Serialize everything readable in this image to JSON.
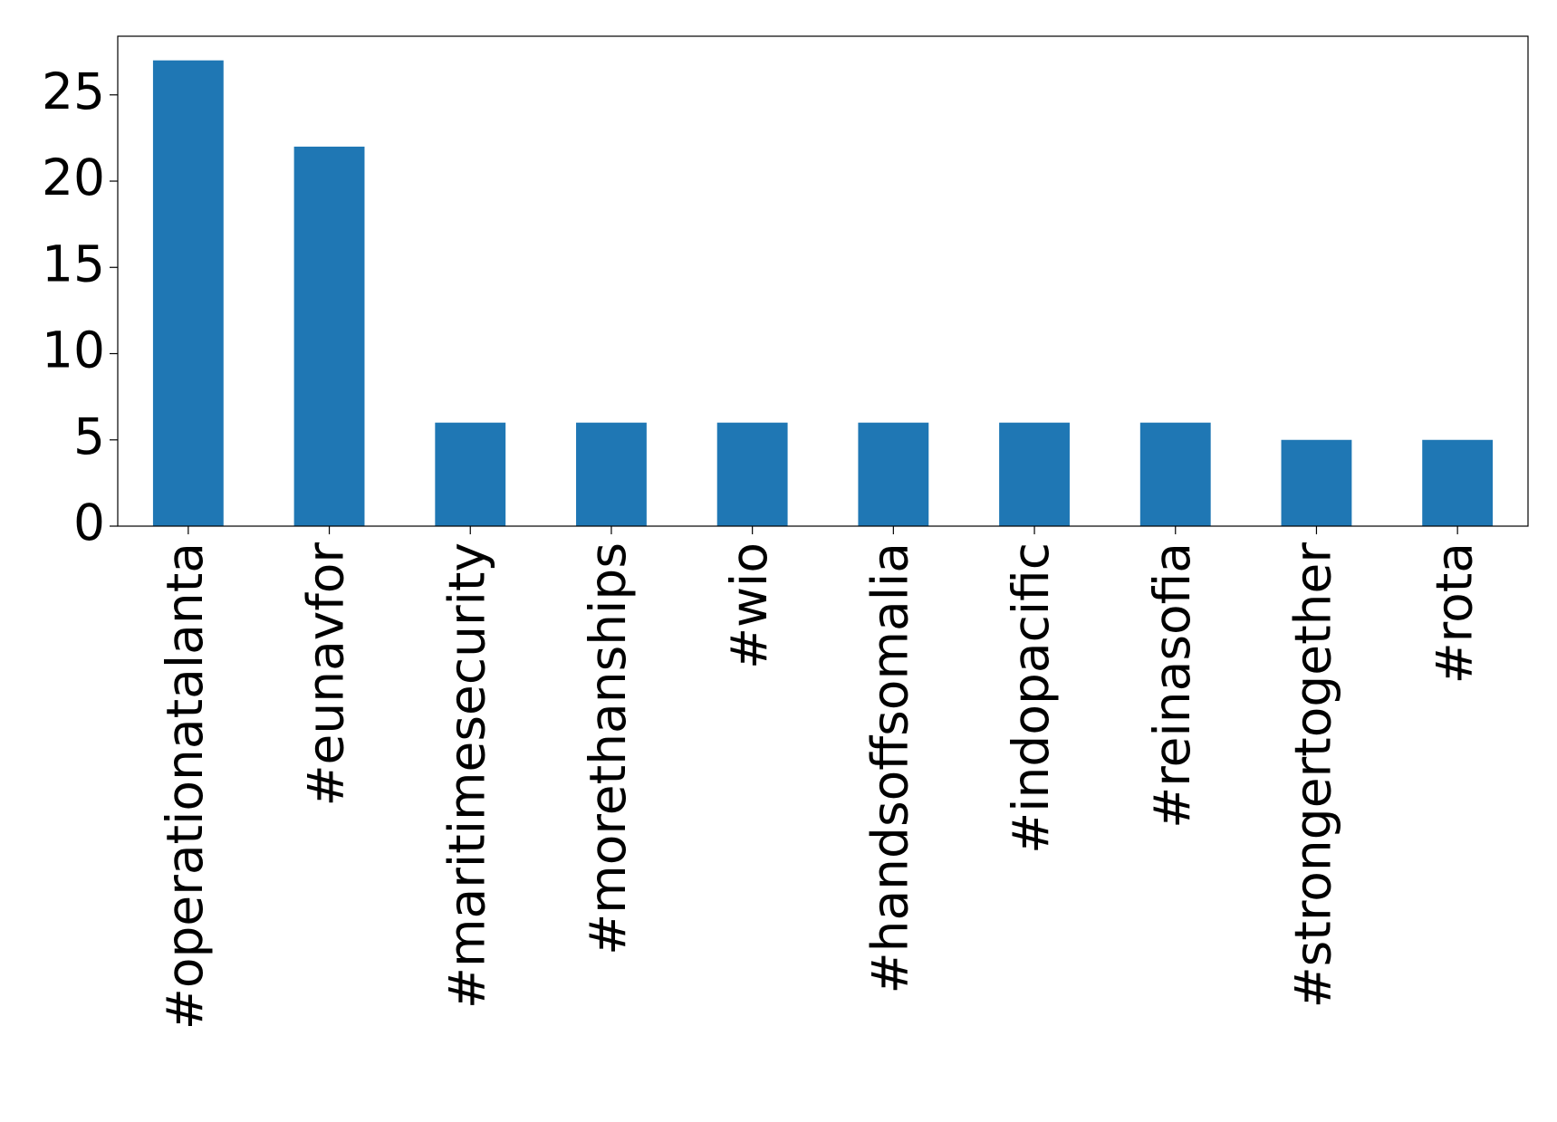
{
  "chart_data": {
    "type": "bar",
    "categories": [
      "#operationatalanta",
      "#eunavfor",
      "#maritimesecurity",
      "#morethanships",
      "#wio",
      "#handsoffsomalia",
      "#indopacific",
      "#reinasofia",
      "#strongertogether",
      "#rota"
    ],
    "values": [
      27,
      22,
      6,
      6,
      6,
      6,
      6,
      6,
      5,
      5
    ],
    "color": "#1f77b4",
    "ylim": [
      0,
      28.4
    ],
    "yticks": [
      0,
      5,
      10,
      15,
      20,
      25
    ],
    "grid": false
  }
}
